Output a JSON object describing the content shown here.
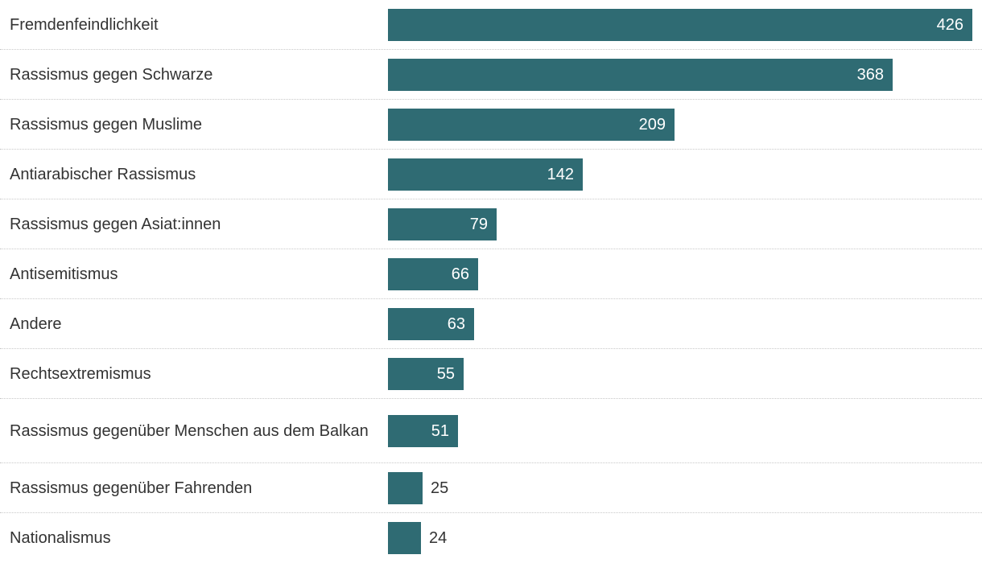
{
  "chart_data": {
    "type": "bar",
    "orientation": "horizontal",
    "categories": [
      "Fremdenfeindlichkeit",
      "Rassismus gegen Schwarze",
      "Rassismus gegen Muslime",
      "Antiarabischer Rassismus",
      "Rassismus gegen Asiat:innen",
      "Antisemitismus",
      "Andere",
      "Rechtsextremismus",
      "Rassismus gegenüber Menschen aus dem Balkan",
      "Rassismus gegenüber Fahrenden",
      "Nationalismus"
    ],
    "values": [
      426,
      368,
      209,
      142,
      79,
      66,
      63,
      55,
      51,
      25,
      24
    ],
    "labels": [
      "426",
      "368",
      "209",
      "142",
      "79",
      "66",
      "63",
      "55",
      "51",
      "25",
      "24"
    ],
    "xlim": [
      0,
      426
    ],
    "bar_color": "#2f6b73",
    "grid": false
  }
}
